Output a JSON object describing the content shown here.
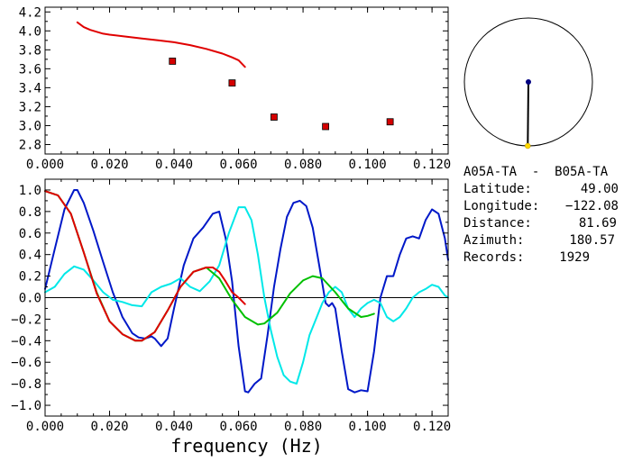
{
  "chart_data": [
    {
      "type": "scatter",
      "xlim": [
        0.0,
        0.125
      ],
      "ylim": [
        2.7,
        4.25
      ],
      "x_ticks": [
        0.0,
        0.02,
        0.04,
        0.06,
        0.08,
        0.1,
        0.12
      ],
      "x_tick_labels": [
        "0.000",
        "0.020",
        "0.040",
        "0.060",
        "0.080",
        "0.100",
        "0.120"
      ],
      "y_ticks": [
        2.8,
        3.0,
        3.2,
        3.4,
        3.6,
        3.8,
        4.0,
        4.2
      ],
      "y_tick_labels": [
        "2.8",
        "3.0",
        "3.2",
        "3.4",
        "3.6",
        "3.8",
        "4.0",
        "4.2"
      ],
      "series": [
        {
          "kind": "line",
          "color": "#e00000",
          "x": [
            0.01,
            0.012,
            0.014,
            0.016,
            0.018,
            0.02,
            0.025,
            0.03,
            0.035,
            0.04,
            0.045,
            0.05,
            0.055,
            0.058,
            0.06,
            0.062
          ],
          "y": [
            4.09,
            4.04,
            4.01,
            3.99,
            3.97,
            3.96,
            3.94,
            3.92,
            3.9,
            3.88,
            3.85,
            3.81,
            3.76,
            3.72,
            3.69,
            3.62
          ]
        },
        {
          "kind": "markers",
          "color": "#d40000",
          "x": [
            0.0395,
            0.058,
            0.071,
            0.087,
            0.107
          ],
          "y": [
            3.68,
            3.45,
            3.09,
            2.99,
            3.04
          ]
        }
      ]
    },
    {
      "type": "line",
      "xlim": [
        0.0,
        0.125
      ],
      "ylim": [
        -1.1,
        1.1
      ],
      "xlabel": "frequency (Hz)",
      "x_ticks": [
        0.0,
        0.02,
        0.04,
        0.06,
        0.08,
        0.1,
        0.12
      ],
      "x_tick_labels": [
        "0.000",
        "0.020",
        "0.040",
        "0.060",
        "0.080",
        "0.100",
        "0.120"
      ],
      "y_ticks": [
        -1.0,
        -0.8,
        -0.6,
        -0.4,
        -0.2,
        0.0,
        0.2,
        0.4,
        0.6,
        0.8,
        1.0
      ],
      "y_tick_labels": [
        "−1.0",
        "−0.8",
        "−0.6",
        "−0.4",
        "−0.2",
        "0.0",
        "0.2",
        "0.4",
        "0.6",
        "0.8",
        "1.0"
      ],
      "series": [
        {
          "color": "#0018c8",
          "x": [
            0.0,
            0.003,
            0.006,
            0.009,
            0.01,
            0.012,
            0.015,
            0.018,
            0.021,
            0.024,
            0.027,
            0.029,
            0.031,
            0.033,
            0.034,
            0.036,
            0.038,
            0.04,
            0.043,
            0.046,
            0.049,
            0.052,
            0.054,
            0.056,
            0.058,
            0.06,
            0.062,
            0.063,
            0.065,
            0.067,
            0.069,
            0.071,
            0.073,
            0.075,
            0.077,
            0.079,
            0.081,
            0.083,
            0.085,
            0.087,
            0.088,
            0.089,
            0.09,
            0.092,
            0.094,
            0.096,
            0.098,
            0.1,
            0.102,
            0.104,
            0.106,
            0.108,
            0.11,
            0.112,
            0.114,
            0.116,
            0.118,
            0.12,
            0.122,
            0.124,
            0.125
          ],
          "y": [
            0.08,
            0.45,
            0.82,
            1.0,
            1.0,
            0.88,
            0.62,
            0.33,
            0.05,
            -0.18,
            -0.33,
            -0.37,
            -0.38,
            -0.36,
            -0.38,
            -0.45,
            -0.38,
            -0.1,
            0.3,
            0.55,
            0.65,
            0.78,
            0.8,
            0.55,
            0.15,
            -0.45,
            -0.87,
            -0.88,
            -0.8,
            -0.75,
            -0.35,
            0.1,
            0.45,
            0.75,
            0.88,
            0.9,
            0.85,
            0.65,
            0.3,
            -0.05,
            -0.08,
            -0.05,
            -0.1,
            -0.5,
            -0.85,
            -0.88,
            -0.86,
            -0.87,
            -0.5,
            0.0,
            0.2,
            0.2,
            0.4,
            0.55,
            0.57,
            0.55,
            0.72,
            0.82,
            0.78,
            0.55,
            0.35
          ]
        },
        {
          "color": "#00e8e8",
          "x": [
            0.0,
            0.003,
            0.006,
            0.009,
            0.012,
            0.015,
            0.018,
            0.021,
            0.024,
            0.027,
            0.03,
            0.033,
            0.036,
            0.039,
            0.042,
            0.045,
            0.048,
            0.051,
            0.054,
            0.057,
            0.06,
            0.062,
            0.064,
            0.066,
            0.068,
            0.07,
            0.072,
            0.074,
            0.076,
            0.078,
            0.08,
            0.082,
            0.084,
            0.086,
            0.088,
            0.09,
            0.092,
            0.094,
            0.096,
            0.098,
            0.1,
            0.102,
            0.104,
            0.106,
            0.108,
            0.11,
            0.112,
            0.114,
            0.116,
            0.118,
            0.12,
            0.122,
            0.124,
            0.125
          ],
          "y": [
            0.05,
            0.1,
            0.22,
            0.29,
            0.26,
            0.16,
            0.05,
            -0.02,
            -0.04,
            -0.07,
            -0.08,
            0.05,
            0.1,
            0.13,
            0.18,
            0.1,
            0.06,
            0.15,
            0.3,
            0.6,
            0.84,
            0.84,
            0.72,
            0.4,
            0.0,
            -0.3,
            -0.55,
            -0.72,
            -0.78,
            -0.8,
            -0.6,
            -0.35,
            -0.2,
            -0.05,
            0.05,
            0.1,
            0.05,
            -0.1,
            -0.18,
            -0.1,
            -0.05,
            -0.02,
            -0.05,
            -0.18,
            -0.22,
            -0.18,
            -0.1,
            0.0,
            0.05,
            0.08,
            0.12,
            0.1,
            0.02,
            0.0
          ]
        },
        {
          "color": "#00c000",
          "x": [
            0.0,
            0.004,
            0.008,
            0.012,
            0.016,
            0.02,
            0.024,
            0.028,
            0.03,
            0.034,
            0.038,
            0.042,
            0.046,
            0.05,
            0.054,
            0.058,
            0.062,
            0.066,
            0.068,
            0.072,
            0.076,
            0.08,
            0.083,
            0.086,
            0.09,
            0.094,
            0.098,
            0.1,
            0.102
          ],
          "y": [
            0.99,
            0.95,
            0.78,
            0.42,
            0.05,
            -0.22,
            -0.34,
            -0.4,
            -0.4,
            -0.32,
            -0.12,
            0.1,
            0.24,
            0.28,
            0.18,
            -0.02,
            -0.18,
            -0.25,
            -0.24,
            -0.14,
            0.04,
            0.16,
            0.2,
            0.18,
            0.05,
            -0.1,
            -0.18,
            -0.17,
            -0.15
          ]
        },
        {
          "color": "#e00000",
          "x": [
            0.0,
            0.004,
            0.008,
            0.012,
            0.016,
            0.02,
            0.024,
            0.028,
            0.03,
            0.034,
            0.038,
            0.042,
            0.046,
            0.05,
            0.052,
            0.054,
            0.056,
            0.058,
            0.06,
            0.062
          ],
          "y": [
            0.99,
            0.95,
            0.78,
            0.42,
            0.04,
            -0.22,
            -0.34,
            -0.4,
            -0.4,
            -0.32,
            -0.12,
            0.1,
            0.24,
            0.28,
            0.28,
            0.24,
            0.15,
            0.05,
            0.0,
            -0.06
          ]
        }
      ]
    }
  ],
  "info": {
    "station_pair": "A05A-TA  -  B05A-TA",
    "rows": [
      {
        "label": "Latitude:",
        "value": "49.00"
      },
      {
        "label": "Longitude:",
        "value": "−122.08"
      },
      {
        "label": "Distance:",
        "value": "81.69"
      },
      {
        "label": "Azimuth:",
        "value": "180.57"
      },
      {
        "label": "Records:",
        "value": "1929"
      }
    ]
  },
  "azimuth_circle": {
    "azimuth_deg": 180.57,
    "circle_color": "#000000",
    "center_dot_color": "#000080",
    "end_dot_color": "#ffd800"
  }
}
